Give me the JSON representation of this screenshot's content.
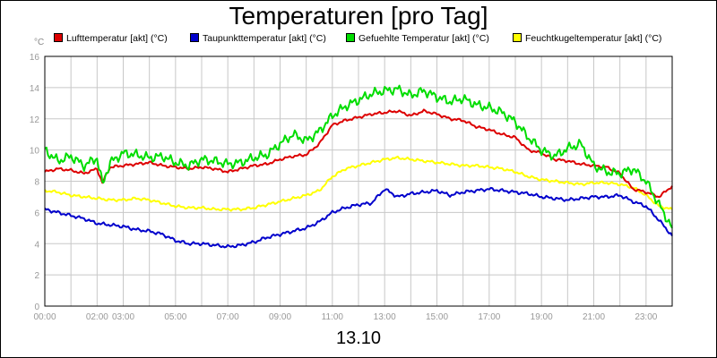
{
  "chart_data": {
    "type": "line",
    "title": "Temperaturen [pro Tag]",
    "y_unit": "°C",
    "date_label": "13.10",
    "ylim": [
      0,
      16
    ],
    "y_ticks": [
      "0",
      "2",
      "4",
      "6",
      "8",
      "10",
      "12",
      "14",
      "16"
    ],
    "x_ticks": [
      "00:00",
      "02:00",
      "03:00",
      "05:00",
      "07:00",
      "09:00",
      "11:00",
      "13:00",
      "15:00",
      "17:00",
      "19:00",
      "21:00",
      "23:00"
    ],
    "x_tick_hours": [
      0,
      2,
      3,
      5,
      7,
      9,
      11,
      13,
      15,
      17,
      19,
      21,
      23
    ],
    "xlim": [
      0,
      24
    ],
    "grid": true,
    "legend_position": "top",
    "series": [
      {
        "name": "Lufttemperatur [akt] (°C)",
        "color": "#dd0000",
        "x": [
          0,
          0.5,
          1,
          1.5,
          2,
          2.2,
          2.5,
          3,
          3.5,
          4,
          4.5,
          5,
          5.5,
          6,
          6.5,
          7,
          7.5,
          8,
          8.5,
          9,
          9.5,
          10,
          10.5,
          11,
          11.5,
          12,
          12.5,
          13,
          13.5,
          14,
          14.5,
          15,
          15.5,
          16,
          16.5,
          17,
          17.5,
          18,
          18.5,
          19,
          19.5,
          20,
          20.5,
          21,
          21.5,
          22,
          22.5,
          23,
          23.5,
          24
        ],
        "y": [
          8.6,
          8.8,
          8.7,
          8.5,
          8.8,
          7.9,
          8.9,
          9.0,
          9.1,
          9.2,
          9.0,
          8.9,
          8.8,
          8.9,
          8.8,
          8.6,
          8.8,
          9.0,
          9.1,
          9.4,
          9.6,
          9.7,
          10.4,
          11.6,
          11.9,
          12.1,
          12.3,
          12.4,
          12.5,
          12.2,
          12.5,
          12.3,
          12.0,
          11.9,
          11.5,
          11.3,
          11.0,
          10.8,
          10.0,
          9.8,
          9.4,
          9.3,
          9.1,
          9.0,
          8.9,
          8.5,
          7.5,
          7.3,
          7.0,
          7.7
        ]
      },
      {
        "name": "Taupunkttemperatur [akt] (°C)",
        "color": "#0000cc",
        "x": [
          0,
          0.5,
          1,
          1.5,
          2,
          2.5,
          3,
          3.5,
          4,
          4.5,
          5,
          5.5,
          6,
          6.5,
          7,
          7.5,
          8,
          8.5,
          9,
          9.5,
          10,
          10.5,
          11,
          11.5,
          12,
          12.5,
          13,
          13.5,
          14,
          14.5,
          15,
          15.5,
          16,
          16.5,
          17,
          17.5,
          18,
          18.5,
          19,
          19.5,
          20,
          20.5,
          21,
          21.5,
          22,
          22.5,
          23,
          23.5,
          24
        ],
        "y": [
          6.2,
          6.0,
          5.8,
          5.6,
          5.3,
          5.2,
          5.1,
          4.9,
          4.8,
          4.6,
          4.2,
          4.0,
          4.0,
          3.9,
          3.8,
          3.9,
          4.1,
          4.4,
          4.6,
          4.8,
          5.0,
          5.4,
          6.0,
          6.3,
          6.5,
          6.6,
          7.5,
          7.0,
          7.2,
          7.3,
          7.4,
          7.1,
          7.3,
          7.4,
          7.5,
          7.4,
          7.3,
          7.2,
          7.0,
          6.9,
          6.8,
          6.9,
          7.0,
          7.0,
          7.1,
          6.7,
          6.4,
          5.5,
          4.5
        ]
      },
      {
        "name": "Gefuehlte Temperatur [akt] (°C)",
        "color": "#00dd00",
        "x": [
          0,
          0.5,
          1,
          1.5,
          2,
          2.2,
          2.5,
          3,
          3.5,
          4,
          4.5,
          5,
          5.5,
          6,
          6.5,
          7,
          7.5,
          8,
          8.5,
          9,
          9.5,
          10,
          10.5,
          11,
          11.5,
          12,
          12.5,
          13,
          13.5,
          14,
          14.5,
          15,
          15.5,
          16,
          16.5,
          17,
          17.5,
          18,
          18.5,
          19,
          19.5,
          20,
          20.5,
          21,
          21.5,
          22,
          22.5,
          23,
          23.5,
          24
        ],
        "y": [
          10.0,
          9.3,
          9.6,
          9.0,
          9.5,
          7.8,
          9.2,
          9.8,
          9.7,
          9.5,
          9.6,
          9.2,
          9.0,
          9.4,
          9.3,
          9.1,
          9.2,
          9.5,
          9.7,
          10.4,
          11.0,
          10.6,
          11.2,
          12.2,
          12.8,
          13.2,
          13.6,
          13.8,
          13.9,
          13.5,
          13.8,
          13.4,
          13.1,
          13.3,
          12.9,
          12.7,
          12.4,
          11.8,
          10.8,
          10.0,
          9.6,
          10.1,
          10.4,
          9.0,
          8.6,
          8.5,
          8.8,
          8.0,
          6.5,
          5.0
        ]
      },
      {
        "name": "Feuchtkugeltemperatur [akt] (°C)",
        "color": "#ffff00",
        "x": [
          0,
          0.5,
          1,
          1.5,
          2,
          2.5,
          3,
          3.5,
          4,
          4.5,
          5,
          5.5,
          6,
          6.5,
          7,
          7.5,
          8,
          8.5,
          9,
          9.5,
          10,
          10.5,
          11,
          11.5,
          12,
          12.5,
          13,
          13.5,
          14,
          14.5,
          15,
          15.5,
          16,
          16.5,
          17,
          17.5,
          18,
          18.5,
          19,
          19.5,
          20,
          20.5,
          21,
          21.5,
          22,
          22.5,
          23,
          23.5,
          24
        ],
        "y": [
          7.4,
          7.3,
          7.1,
          7.0,
          6.9,
          6.8,
          6.8,
          6.9,
          6.8,
          6.6,
          6.4,
          6.3,
          6.3,
          6.2,
          6.2,
          6.2,
          6.3,
          6.5,
          6.7,
          6.9,
          7.1,
          7.4,
          8.3,
          8.8,
          9.0,
          9.2,
          9.4,
          9.5,
          9.4,
          9.3,
          9.2,
          9.1,
          9.0,
          9.0,
          8.9,
          8.8,
          8.6,
          8.3,
          8.1,
          8.0,
          7.9,
          7.8,
          7.9,
          7.9,
          7.8,
          7.6,
          7.1,
          6.4,
          6.2
        ]
      }
    ]
  }
}
